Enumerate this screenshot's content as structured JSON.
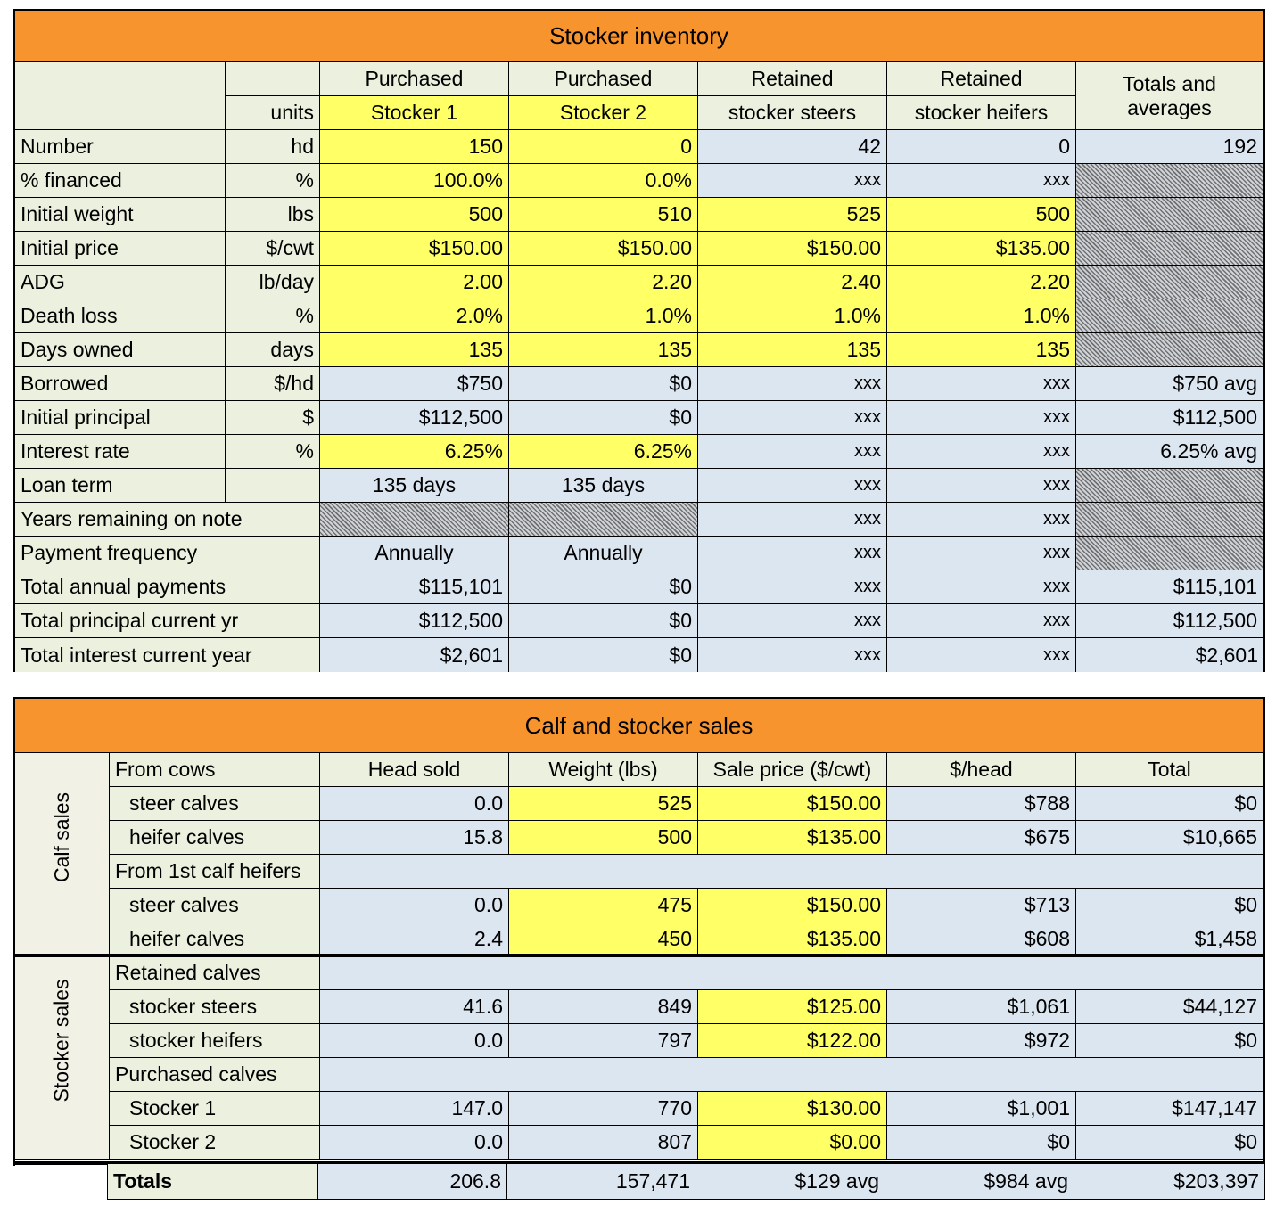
{
  "inventory": {
    "title": "Stocker inventory",
    "headers": {
      "units": "units",
      "c1": [
        "Purchased",
        "Stocker 1"
      ],
      "c2": [
        "Purchased",
        "Stocker 2"
      ],
      "c3": [
        "Retained",
        "stocker steers"
      ],
      "c4": [
        "Retained",
        "stocker heifers"
      ],
      "c5": [
        "Totals and",
        "averages"
      ]
    },
    "rows": [
      {
        "label": "Number",
        "unit": "hd",
        "c1": "150",
        "c2": "0",
        "c3": "42",
        "c4": "0",
        "c5": "192"
      },
      {
        "label": "% financed",
        "unit": "%",
        "c1": "100.0%",
        "c2": "0.0%",
        "c3": "xxx",
        "c4": "xxx",
        "c5": ""
      },
      {
        "label": "Initial weight",
        "unit": "lbs",
        "c1": "500",
        "c2": "510",
        "c3": "525",
        "c4": "500",
        "c5": ""
      },
      {
        "label": "Initial price",
        "unit": "$/cwt",
        "c1": "$150.00",
        "c2": "$150.00",
        "c3": "$150.00",
        "c4": "$135.00",
        "c5": ""
      },
      {
        "label": "ADG",
        "unit": "lb/day",
        "c1": "2.00",
        "c2": "2.20",
        "c3": "2.40",
        "c4": "2.20",
        "c5": ""
      },
      {
        "label": "Death loss",
        "unit": "%",
        "c1": "2.0%",
        "c2": "1.0%",
        "c3": "1.0%",
        "c4": "1.0%",
        "c5": ""
      },
      {
        "label": "Days owned",
        "unit": "days",
        "c1": "135",
        "c2": "135",
        "c3": "135",
        "c4": "135",
        "c5": ""
      },
      {
        "label": "Borrowed",
        "unit": "$/hd",
        "c1": "$750",
        "c2": "$0",
        "c3": "xxx",
        "c4": "xxx",
        "c5": "$750 avg"
      },
      {
        "label": "Initial principal",
        "unit": "$",
        "c1": "$112,500",
        "c2": "$0",
        "c3": "xxx",
        "c4": "xxx",
        "c5": "$112,500"
      },
      {
        "label": "Interest rate",
        "unit": "%",
        "c1": "6.25%",
        "c2": "6.25%",
        "c3": "xxx",
        "c4": "xxx",
        "c5": "6.25% avg"
      },
      {
        "label": "Loan term",
        "unit": "",
        "c1": "135 days",
        "c2": "135 days",
        "c3": "xxx",
        "c4": "xxx",
        "c5": ""
      },
      {
        "label": "Years remaining on note",
        "unit": "",
        "c1": "",
        "c2": "",
        "c3": "xxx",
        "c4": "xxx",
        "c5": ""
      },
      {
        "label": "Payment frequency",
        "unit": "",
        "c1": "Annually",
        "c2": "Annually",
        "c3": "xxx",
        "c4": "xxx",
        "c5": ""
      },
      {
        "label": "Total annual payments",
        "c1": "$115,101",
        "c2": "$0",
        "c3": "xxx",
        "c4": "xxx",
        "c5": "$115,101"
      },
      {
        "label": "Total principal current yr",
        "c1": "$112,500",
        "c2": "$0",
        "c3": "xxx",
        "c4": "xxx",
        "c5": "$112,500"
      },
      {
        "label": "Total interest current year",
        "c1": "$2,601",
        "c2": "$0",
        "c3": "xxx",
        "c4": "xxx",
        "c5": "$2,601"
      }
    ]
  },
  "sales": {
    "title": "Calf and stocker sales",
    "headers": {
      "head": "Head sold",
      "weight": "Weight (lbs)",
      "price": "Sale price ($/cwt)",
      "perhead": "$/head",
      "total": "Total"
    },
    "calf_label": "Calf sales",
    "stocker_label": "Stocker sales",
    "groups": {
      "from_cows": "From cows",
      "from_first_calf": "From 1st calf heifers",
      "retained": "Retained calves",
      "purchased": "Purchased calves"
    },
    "rows": [
      {
        "label": "steer calves",
        "head": "0.0",
        "weight": "525",
        "price": "$150.00",
        "perhead": "$788",
        "total": "$0"
      },
      {
        "label": "heifer calves",
        "head": "15.8",
        "weight": "500",
        "price": "$135.00",
        "perhead": "$675",
        "total": "$10,665"
      },
      {
        "label": "steer calves",
        "head": "0.0",
        "weight": "475",
        "price": "$150.00",
        "perhead": "$713",
        "total": "$0"
      },
      {
        "label": "heifer calves",
        "head": "2.4",
        "weight": "450",
        "price": "$135.00",
        "perhead": "$608",
        "total": "$1,458"
      },
      {
        "label": "stocker steers",
        "head": "41.6",
        "weight": "849",
        "price": "$125.00",
        "perhead": "$1,061",
        "total": "$44,127"
      },
      {
        "label": "stocker heifers",
        "head": "0.0",
        "weight": "797",
        "price": "$122.00",
        "perhead": "$972",
        "total": "$0"
      },
      {
        "label": "Stocker 1",
        "head": "147.0",
        "weight": "770",
        "price": "$130.00",
        "perhead": "$1,001",
        "total": "$147,147"
      },
      {
        "label": "Stocker 2",
        "head": "0.0",
        "weight": "807",
        "price": "$0.00",
        "perhead": "$0",
        "total": "$0"
      }
    ],
    "totals": {
      "label": "Totals",
      "head": "206.8",
      "weight": "157,471",
      "price": "$129 avg",
      "perhead": "$984 avg",
      "total": "$203,397"
    }
  }
}
